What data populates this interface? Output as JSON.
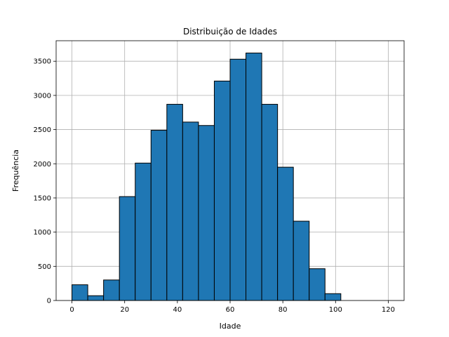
{
  "chart_data": {
    "type": "bar",
    "subtype": "histogram",
    "title": "Distribuição de Idades",
    "xlabel": "Idade",
    "ylabel": "Frequência",
    "xlim": [
      -6,
      126
    ],
    "ylim": [
      0,
      3800
    ],
    "xticks": [
      0,
      20,
      40,
      60,
      80,
      100,
      120
    ],
    "yticks": [
      0,
      500,
      1000,
      1500,
      2000,
      2500,
      3000,
      3500
    ],
    "grid": true,
    "bar_color": "#1f77b4",
    "edge_color": "#000000",
    "bin_edges": [
      0,
      6,
      12,
      18,
      24,
      30,
      36,
      42,
      48,
      54,
      60,
      66,
      72,
      78,
      84,
      90,
      96,
      102,
      108,
      114,
      120
    ],
    "values": [
      230,
      70,
      300,
      1520,
      2010,
      2490,
      2870,
      2610,
      2560,
      3210,
      3530,
      3620,
      2870,
      1950,
      1160,
      465,
      100,
      0,
      0,
      0
    ]
  }
}
